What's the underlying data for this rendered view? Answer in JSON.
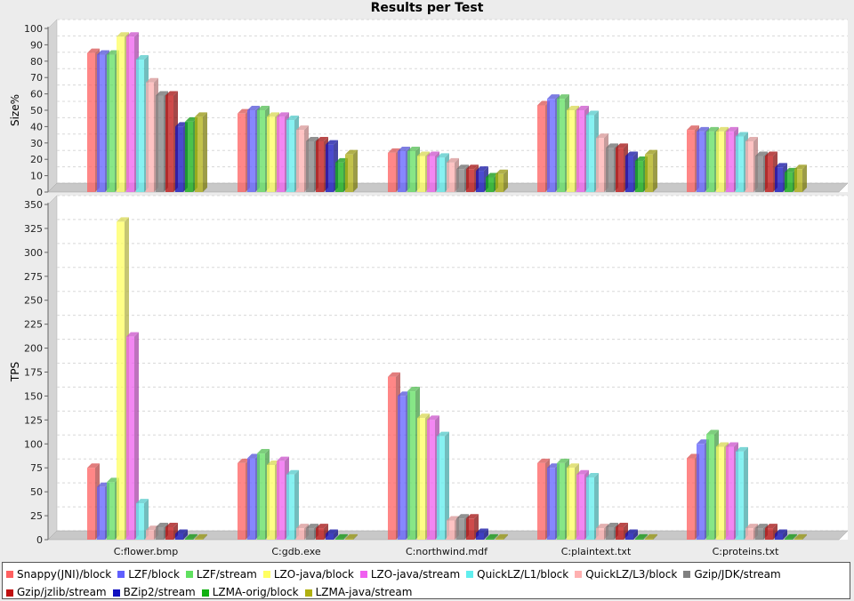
{
  "chart_data": {
    "type": "bar",
    "title": "Results per Test",
    "categories": [
      "C:flower.bmp",
      "C:gdb.exe",
      "C:northwind.mdf",
      "C:plaintext.txt",
      "C:proteins.txt"
    ],
    "series": [
      {
        "name": "Snappy(JNI)/block",
        "color": "#ff6060"
      },
      {
        "name": "LZF/block",
        "color": "#6060ff"
      },
      {
        "name": "LZF/stream",
        "color": "#60e060"
      },
      {
        "name": "LZO-java/block",
        "color": "#ffff60"
      },
      {
        "name": "LZO-java/stream",
        "color": "#f060f0"
      },
      {
        "name": "QuickLZ/L1/block",
        "color": "#60eeee"
      },
      {
        "name": "QuickLZ/L3/block",
        "color": "#ffb0b0"
      },
      {
        "name": "Gzip/JDK/stream",
        "color": "#808080"
      },
      {
        "name": "Gzip/jzlib/stream",
        "color": "#c01010"
      },
      {
        "name": "BZip2/stream",
        "color": "#1010c0"
      },
      {
        "name": "LZMA-orig/block",
        "color": "#10b010"
      },
      {
        "name": "LZMA-java/stream",
        "color": "#b0b010"
      }
    ],
    "panels": [
      {
        "ylabel": "Size%",
        "ylim": [
          0,
          100
        ],
        "ticks": [
          0,
          10,
          20,
          30,
          40,
          50,
          60,
          70,
          80,
          90,
          100
        ],
        "values": [
          [
            85,
            48,
            24,
            53,
            38
          ],
          [
            84,
            50,
            25,
            57,
            37
          ],
          [
            84,
            50,
            25,
            57,
            37
          ],
          [
            95,
            46,
            22,
            50,
            37
          ],
          [
            95,
            46,
            22,
            50,
            37
          ],
          [
            81,
            44,
            21,
            47,
            34
          ],
          [
            67,
            38,
            18,
            33,
            31
          ],
          [
            59,
            31,
            14,
            27,
            22
          ],
          [
            59,
            31,
            14,
            27,
            22
          ],
          [
            40,
            29,
            13,
            22,
            15
          ],
          [
            43,
            18,
            9,
            19,
            12
          ],
          [
            46,
            23,
            11,
            23,
            14
          ]
        ]
      },
      {
        "ylabel": "TPS",
        "ylim": [
          0,
          350
        ],
        "ticks": [
          0,
          25,
          50,
          75,
          100,
          125,
          150,
          175,
          200,
          225,
          250,
          275,
          300,
          325,
          350
        ],
        "values": [
          [
            75,
            80,
            170,
            80,
            85
          ],
          [
            55,
            85,
            150,
            75,
            100
          ],
          [
            60,
            90,
            155,
            80,
            110
          ],
          [
            332,
            78,
            127,
            75,
            97
          ],
          [
            212,
            82,
            125,
            68,
            97
          ],
          [
            38,
            68,
            108,
            65,
            92
          ],
          [
            10,
            12,
            20,
            12,
            12
          ],
          [
            13,
            12,
            22,
            13,
            12
          ],
          [
            13,
            12,
            22,
            13,
            12
          ],
          [
            6,
            6,
            7,
            6,
            6
          ],
          [
            1,
            1,
            1,
            1,
            1
          ],
          [
            1,
            1,
            1,
            1,
            1
          ]
        ]
      }
    ],
    "grid": true,
    "legend_position": "bottom"
  }
}
